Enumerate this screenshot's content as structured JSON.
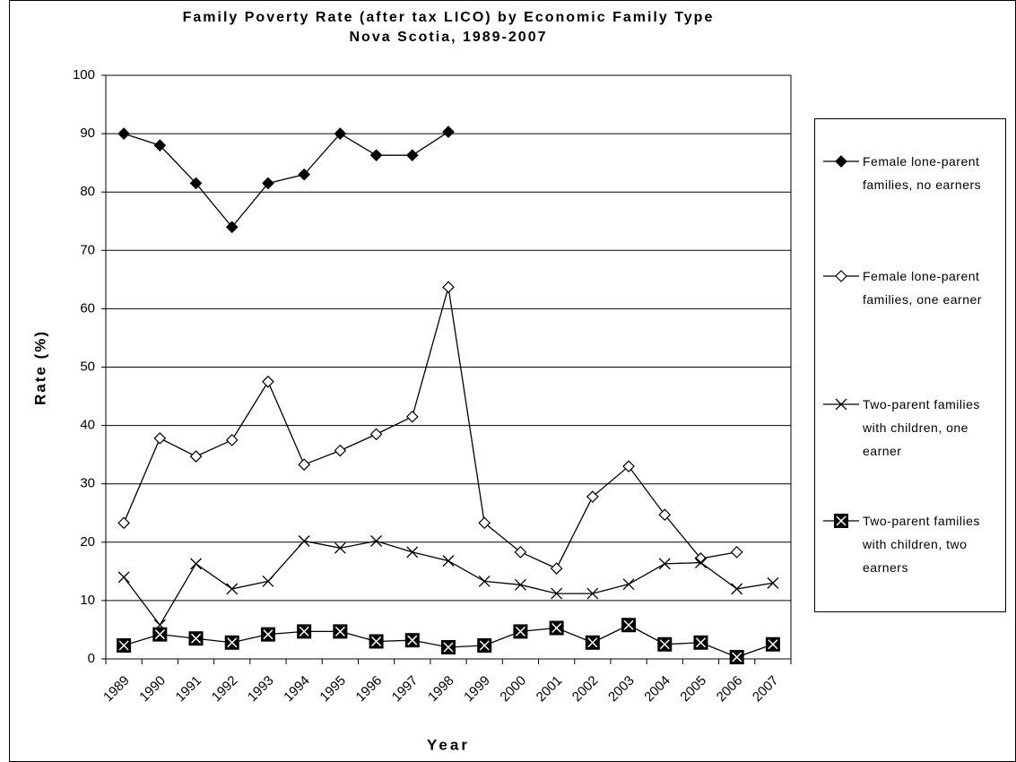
{
  "chart_data": {
    "type": "line",
    "title": "Family Poverty Rate (after tax LICO) by Economic Family Type",
    "subtitle": "Nova Scotia, 1989-2007",
    "x_label": "Year",
    "y_label": "Rate (%)",
    "categories": [
      "1989",
      "1990",
      "1991",
      "1992",
      "1993",
      "1994",
      "1995",
      "1996",
      "1997",
      "1998",
      "1999",
      "2000",
      "2001",
      "2002",
      "2003",
      "2004",
      "2005",
      "2006",
      "2007"
    ],
    "ylim": [
      0,
      100
    ],
    "yticks": [
      0,
      10,
      20,
      30,
      40,
      50,
      60,
      70,
      80,
      90,
      100
    ],
    "grid": true,
    "legend": "right",
    "series": [
      {
        "name": "Female lone-parent families, no earners",
        "color": "#000000",
        "marker": "filled-diamond",
        "values": [
          90,
          88,
          81.5,
          74,
          81.5,
          83,
          90,
          86.3,
          86.3,
          90.3,
          null,
          null,
          null,
          null,
          null,
          null,
          null,
          null,
          null
        ]
      },
      {
        "name": "Female lone-parent families, one earner",
        "color": "#000000",
        "marker": "open-diamond",
        "values": [
          23.3,
          37.8,
          34.7,
          37.5,
          47.5,
          33.3,
          35.7,
          38.5,
          41.5,
          63.7,
          23.3,
          18.3,
          15.5,
          27.8,
          33,
          24.7,
          17.2,
          18.3,
          null
        ]
      },
      {
        "name": "Two-parent families with children, one earner",
        "color": "#000000",
        "marker": "x",
        "values": [
          14,
          5.8,
          16.3,
          12,
          13.3,
          20.2,
          19,
          20.2,
          18.3,
          16.8,
          13.3,
          12.7,
          11.2,
          11.2,
          12.8,
          16.3,
          16.5,
          12,
          13
        ]
      },
      {
        "name": "Two-parent families with children, two earners",
        "color": "#000000",
        "marker": "boxed-x",
        "values": [
          2.3,
          4.2,
          3.5,
          2.8,
          4.2,
          4.7,
          4.7,
          3,
          3.2,
          2,
          2.3,
          4.7,
          5.3,
          2.8,
          5.8,
          2.5,
          2.8,
          0.3,
          2.5
        ]
      }
    ]
  }
}
